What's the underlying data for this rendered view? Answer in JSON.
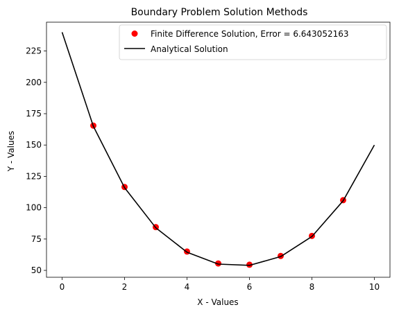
{
  "chart_data": {
    "type": "line",
    "title": "Boundary Problem Solution Methods",
    "xlabel": "X - Values",
    "ylabel": "Y - Values",
    "xlim": [
      -0.5,
      10.5
    ],
    "ylim": [
      44.5,
      248
    ],
    "xticks": [
      0,
      2,
      4,
      6,
      8,
      10
    ],
    "yticks": [
      50,
      75,
      100,
      125,
      150,
      175,
      200,
      225
    ],
    "grid": false,
    "legend_position": "top-right",
    "series": [
      {
        "name": "Finite Difference Solution, Error = 6.643052163",
        "kind": "scatter",
        "color": "#ff0000",
        "x": [
          1,
          2,
          3,
          4,
          5,
          6,
          7,
          8,
          9
        ],
        "y": [
          165.5,
          116.5,
          84.5,
          65,
          55.5,
          54.5,
          61.5,
          77.5,
          106
        ]
      },
      {
        "name": "Analytical Solution",
        "kind": "line",
        "color": "#000000",
        "x": [
          0,
          1,
          2,
          3,
          4,
          5,
          6,
          7,
          8,
          9,
          10
        ],
        "y": [
          240,
          165,
          116,
          84,
          64.5,
          55,
          54,
          61,
          77,
          105.5,
          150
        ]
      }
    ]
  }
}
